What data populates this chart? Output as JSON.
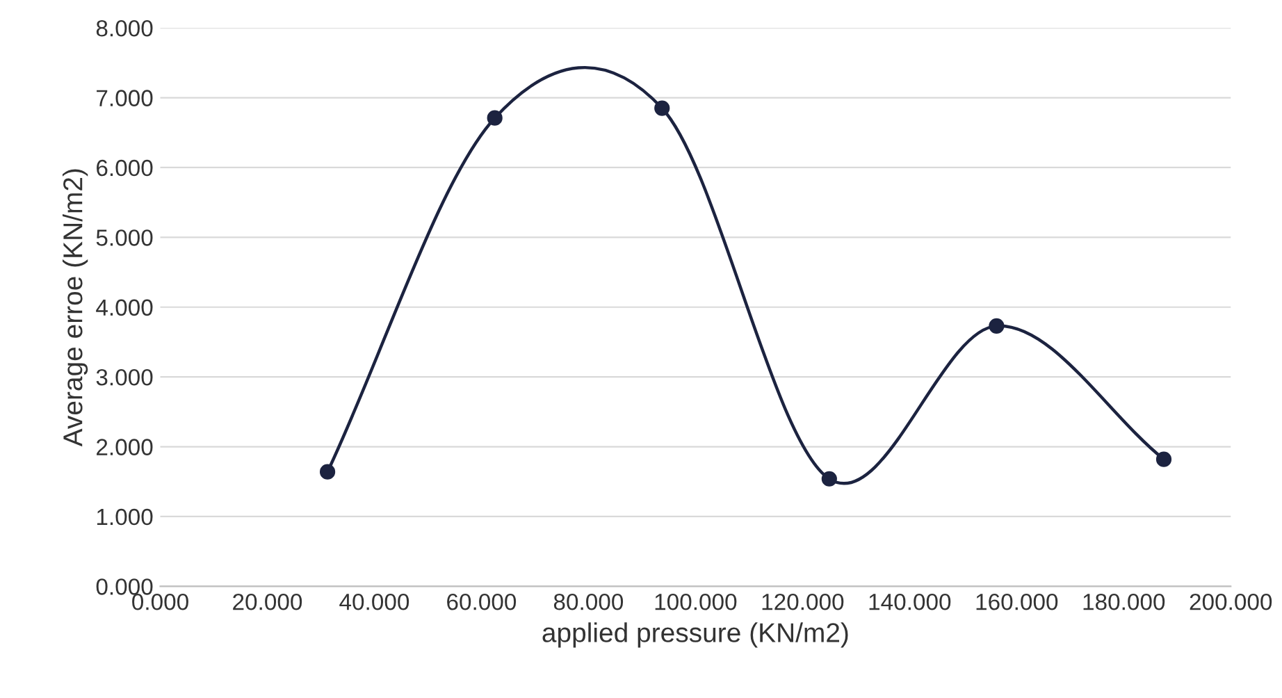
{
  "chart_data": {
    "type": "line",
    "xlabel": "applied pressure (KN/m2)",
    "ylabel": "Average erroe (KN/m2)",
    "x": [
      31.25,
      62.5,
      93.75,
      125,
      156.25,
      187.5
    ],
    "series": [
      {
        "color": "#1c2340",
        "values": [
          1.64,
          6.71,
          6.85,
          1.54,
          3.73,
          1.82
        ]
      }
    ],
    "xlim": [
      0,
      200
    ],
    "ylim": [
      0,
      8
    ],
    "xticks": [
      {
        "value": 0,
        "label": "0.000"
      },
      {
        "value": 20,
        "label": "20.000"
      },
      {
        "value": 40,
        "label": "40.000"
      },
      {
        "value": 60,
        "label": "60.000"
      },
      {
        "value": 80,
        "label": "80.000"
      },
      {
        "value": 100,
        "label": "100.000"
      },
      {
        "value": 120,
        "label": "120.000"
      },
      {
        "value": 140,
        "label": "140.000"
      },
      {
        "value": 160,
        "label": "160.000"
      },
      {
        "value": 180,
        "label": "180.000"
      },
      {
        "value": 200,
        "label": "200.000"
      }
    ],
    "yticks": [
      {
        "value": 0,
        "label": "0.000"
      },
      {
        "value": 1,
        "label": "1.000"
      },
      {
        "value": 2,
        "label": "2.000"
      },
      {
        "value": 3,
        "label": "3.000"
      },
      {
        "value": 4,
        "label": "4.000"
      },
      {
        "value": 5,
        "label": "5.000"
      },
      {
        "value": 6,
        "label": "6.000"
      },
      {
        "value": 7,
        "label": "7.000"
      },
      {
        "value": 8,
        "label": "8.000"
      }
    ],
    "grid": "y",
    "marker": "circle",
    "line_style": "solid",
    "legend": false
  }
}
